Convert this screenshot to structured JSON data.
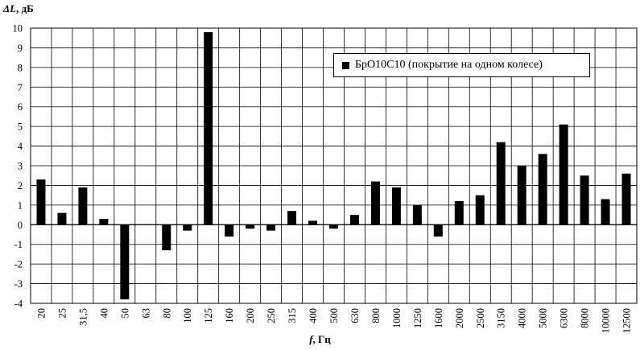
{
  "chart_data": {
    "type": "bar",
    "ylabel_symbol": "ΔL",
    "ylabel_rest": ", дБ",
    "xlabel_symbol": "f",
    "xlabel_rest": ", Гц",
    "ylim": [
      -4,
      10
    ],
    "yticks": [
      -4,
      -3,
      -2,
      -1,
      0,
      1,
      2,
      3,
      4,
      5,
      6,
      7,
      8,
      9,
      10
    ],
    "grid": true,
    "legend_position": "top-right",
    "categories": [
      "20",
      "25",
      "31,5",
      "40",
      "50",
      "63",
      "80",
      "100",
      "125",
      "160",
      "200",
      "250",
      "315",
      "400",
      "500",
      "630",
      "800",
      "1000",
      "1250",
      "1600",
      "2000",
      "2500",
      "3150",
      "4000",
      "5000",
      "6300",
      "8000",
      "10000",
      "12500"
    ],
    "series": [
      {
        "name": "БрО10С10 (покрытие на одном колесе)",
        "color": "#000000",
        "values": [
          2.3,
          0.6,
          1.9,
          0.3,
          -3.8,
          0,
          -1.3,
          -0.3,
          9.8,
          -0.6,
          -0.2,
          -0.3,
          0.7,
          0.2,
          -0.2,
          0.5,
          2.2,
          1.9,
          1.0,
          -0.6,
          1.2,
          1.5,
          4.2,
          3.0,
          3.6,
          5.1,
          2.5,
          1.3,
          2.6
        ]
      }
    ]
  }
}
